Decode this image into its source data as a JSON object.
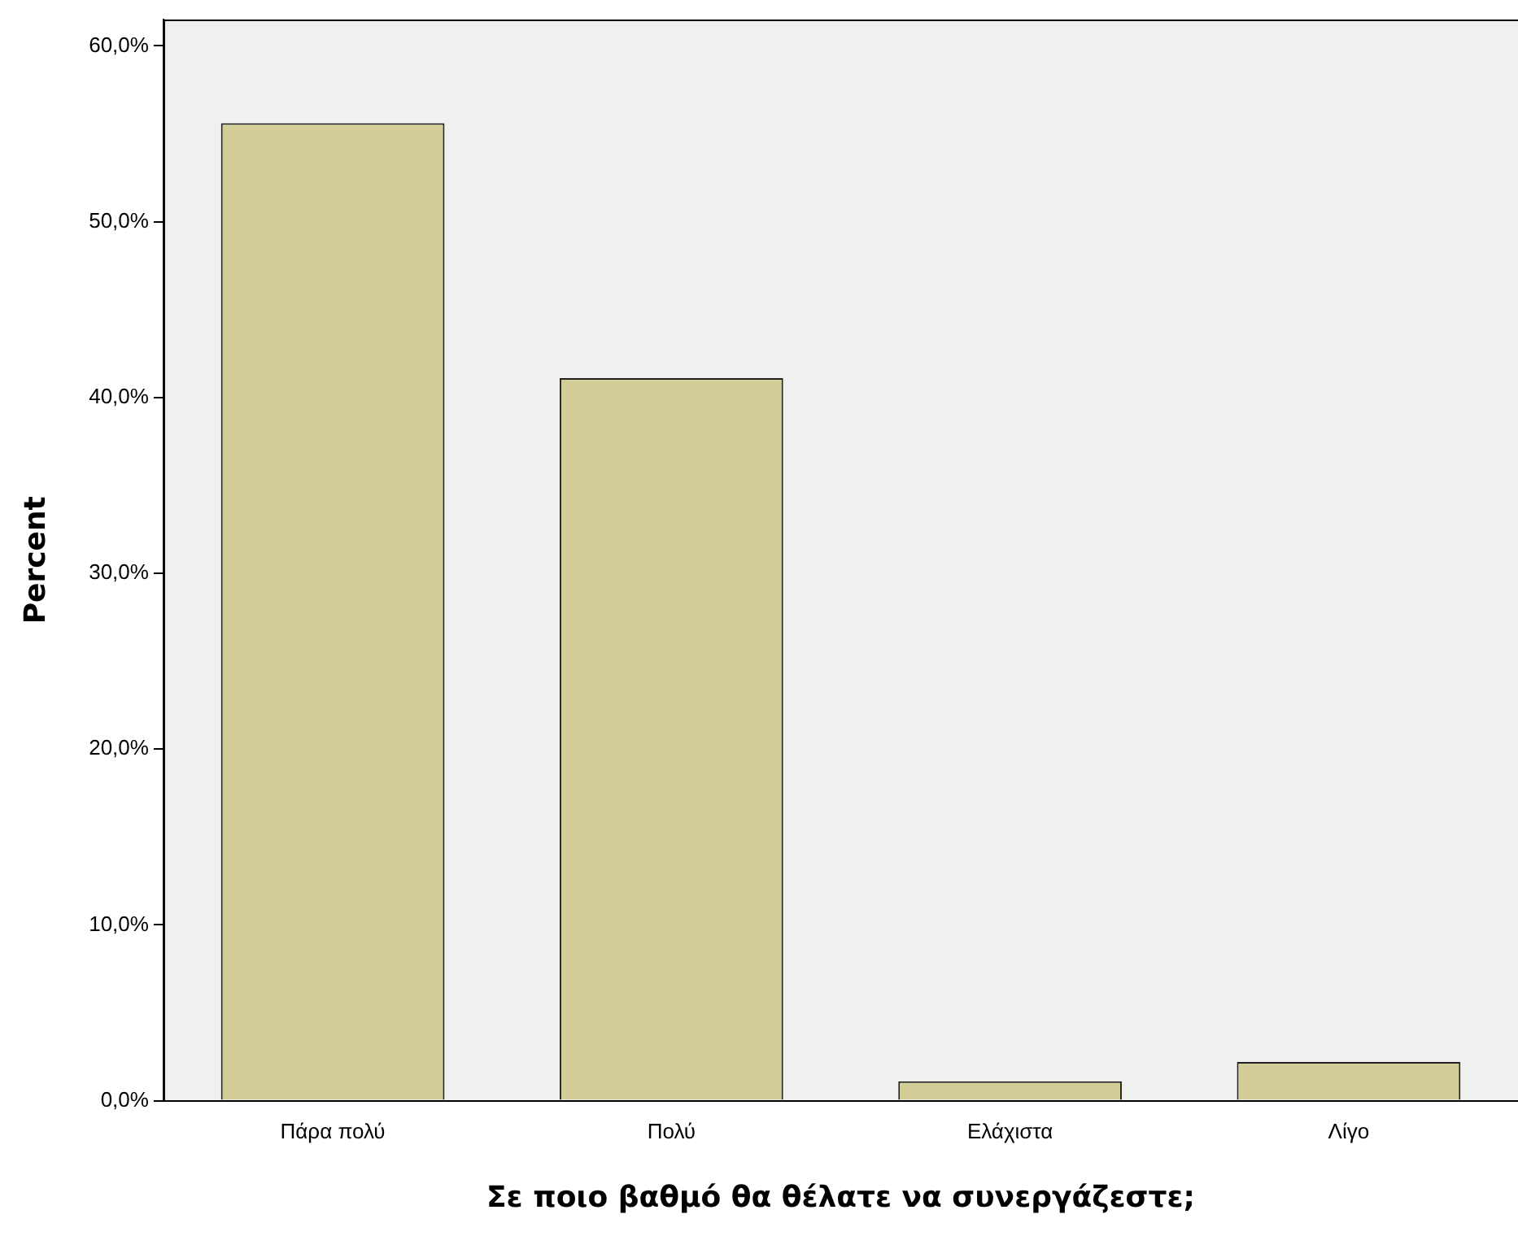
{
  "chart_data": {
    "type": "bar",
    "xlabel": "Σε ποιο βαθμό θα θέλατε να συνεργάζεστε;",
    "ylabel": "Percent",
    "categories": [
      "Πάρα πολύ",
      "Πολύ",
      "Ελάχιστα",
      "Λίγο"
    ],
    "values": [
      55.6,
      41.1,
      1.1,
      2.2
    ],
    "color": "#d3ce97",
    "ylim": [
      0,
      61.5
    ],
    "yticks": [
      {
        "value": 0,
        "label": "0,0%"
      },
      {
        "value": 10,
        "label": "10,0%"
      },
      {
        "value": 20,
        "label": "20,0%"
      },
      {
        "value": 30,
        "label": "30,0%"
      },
      {
        "value": 40,
        "label": "40,0%"
      },
      {
        "value": 50,
        "label": "50,0%"
      },
      {
        "value": 60,
        "label": "60,0%"
      }
    ],
    "grid": false,
    "legend": false
  }
}
